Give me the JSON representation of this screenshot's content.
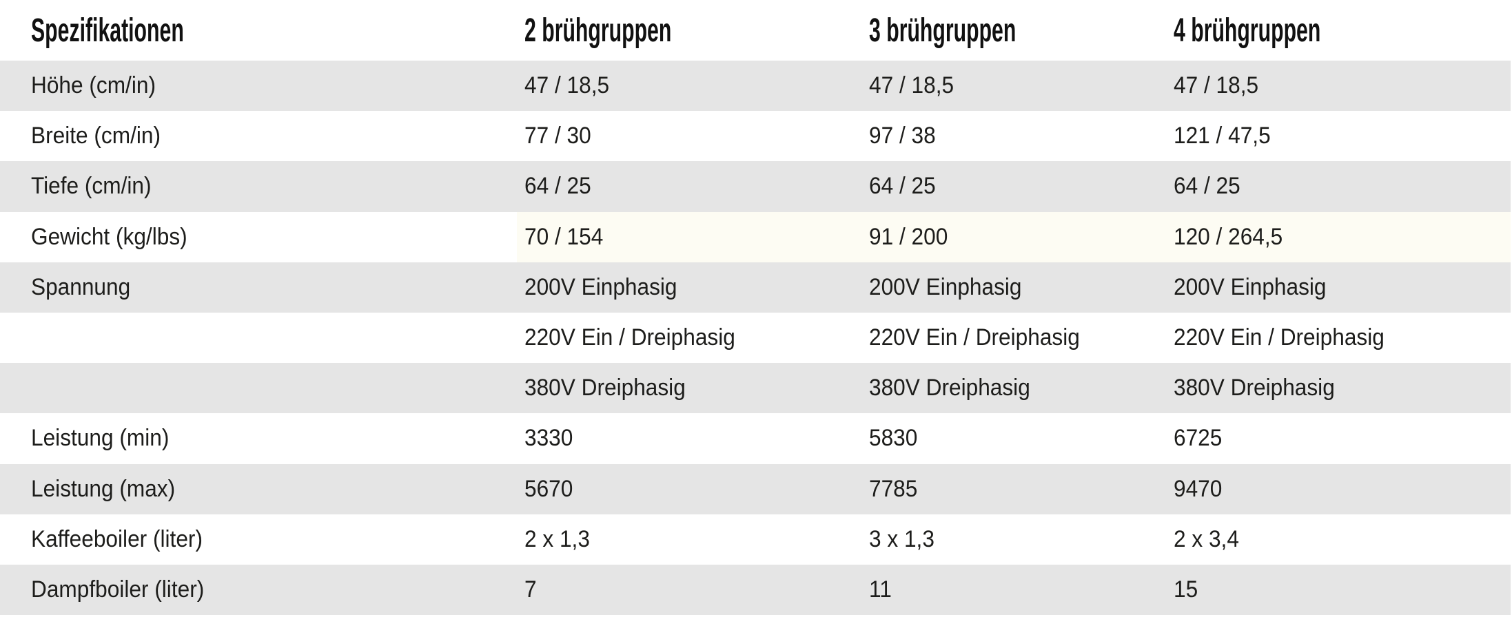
{
  "page_title": "Spezifikationen",
  "colors": {
    "background": "#ffffff",
    "row_shaded": "#e5e5e5",
    "row_cream_tint": "#fdfcf3",
    "text": "#1d1d1b",
    "header_text": "#111111"
  },
  "table": {
    "headers": [
      "Spezifikationen",
      "2 brühgruppen",
      "3 brühgruppen",
      "4 brühgruppen"
    ],
    "rows": [
      {
        "label": "Höhe (cm/in)",
        "values": [
          "47 / 18,5",
          "47 / 18,5",
          "47 / 18,5"
        ],
        "shaded": true,
        "tint": null
      },
      {
        "label": "Breite (cm/in)",
        "values": [
          "77 / 30",
          "97 / 38",
          "121 / 47,5"
        ],
        "shaded": false,
        "tint": null
      },
      {
        "label": "Tiefe (cm/in)",
        "values": [
          "64 / 25",
          "64 / 25",
          "64 / 25"
        ],
        "shaded": true,
        "tint": null
      },
      {
        "label": "Gewicht (kg/lbs)",
        "values": [
          "70 / 154",
          "91 / 200",
          "120 / 264,5"
        ],
        "shaded": false,
        "tint": "cream"
      },
      {
        "label": "Spannung",
        "values": [
          "200V Einphasig",
          "200V Einphasig",
          "200V Einphasig"
        ],
        "shaded": true,
        "tint": null
      },
      {
        "label": "",
        "values": [
          "220V Ein / Dreiphasig",
          "220V Ein / Dreiphasig",
          "220V Ein / Dreiphasig"
        ],
        "shaded": false,
        "tint": null
      },
      {
        "label": "",
        "values": [
          "380V Dreiphasig",
          "380V Dreiphasig",
          "380V Dreiphasig"
        ],
        "shaded": true,
        "tint": null
      },
      {
        "label": "Leistung (min)",
        "values": [
          "3330",
          "5830",
          "6725"
        ],
        "shaded": false,
        "tint": null
      },
      {
        "label": "Leistung (max)",
        "values": [
          "5670",
          "7785",
          "9470"
        ],
        "shaded": true,
        "tint": null
      },
      {
        "label": "Kaffeeboiler (liter)",
        "values": [
          "2 x 1,3",
          "3 x 1,3",
          "2 x 3,4"
        ],
        "shaded": false,
        "tint": null
      },
      {
        "label": "Dampfboiler (liter)",
        "values": [
          "7",
          "11",
          "15"
        ],
        "shaded": true,
        "tint": null
      }
    ]
  }
}
